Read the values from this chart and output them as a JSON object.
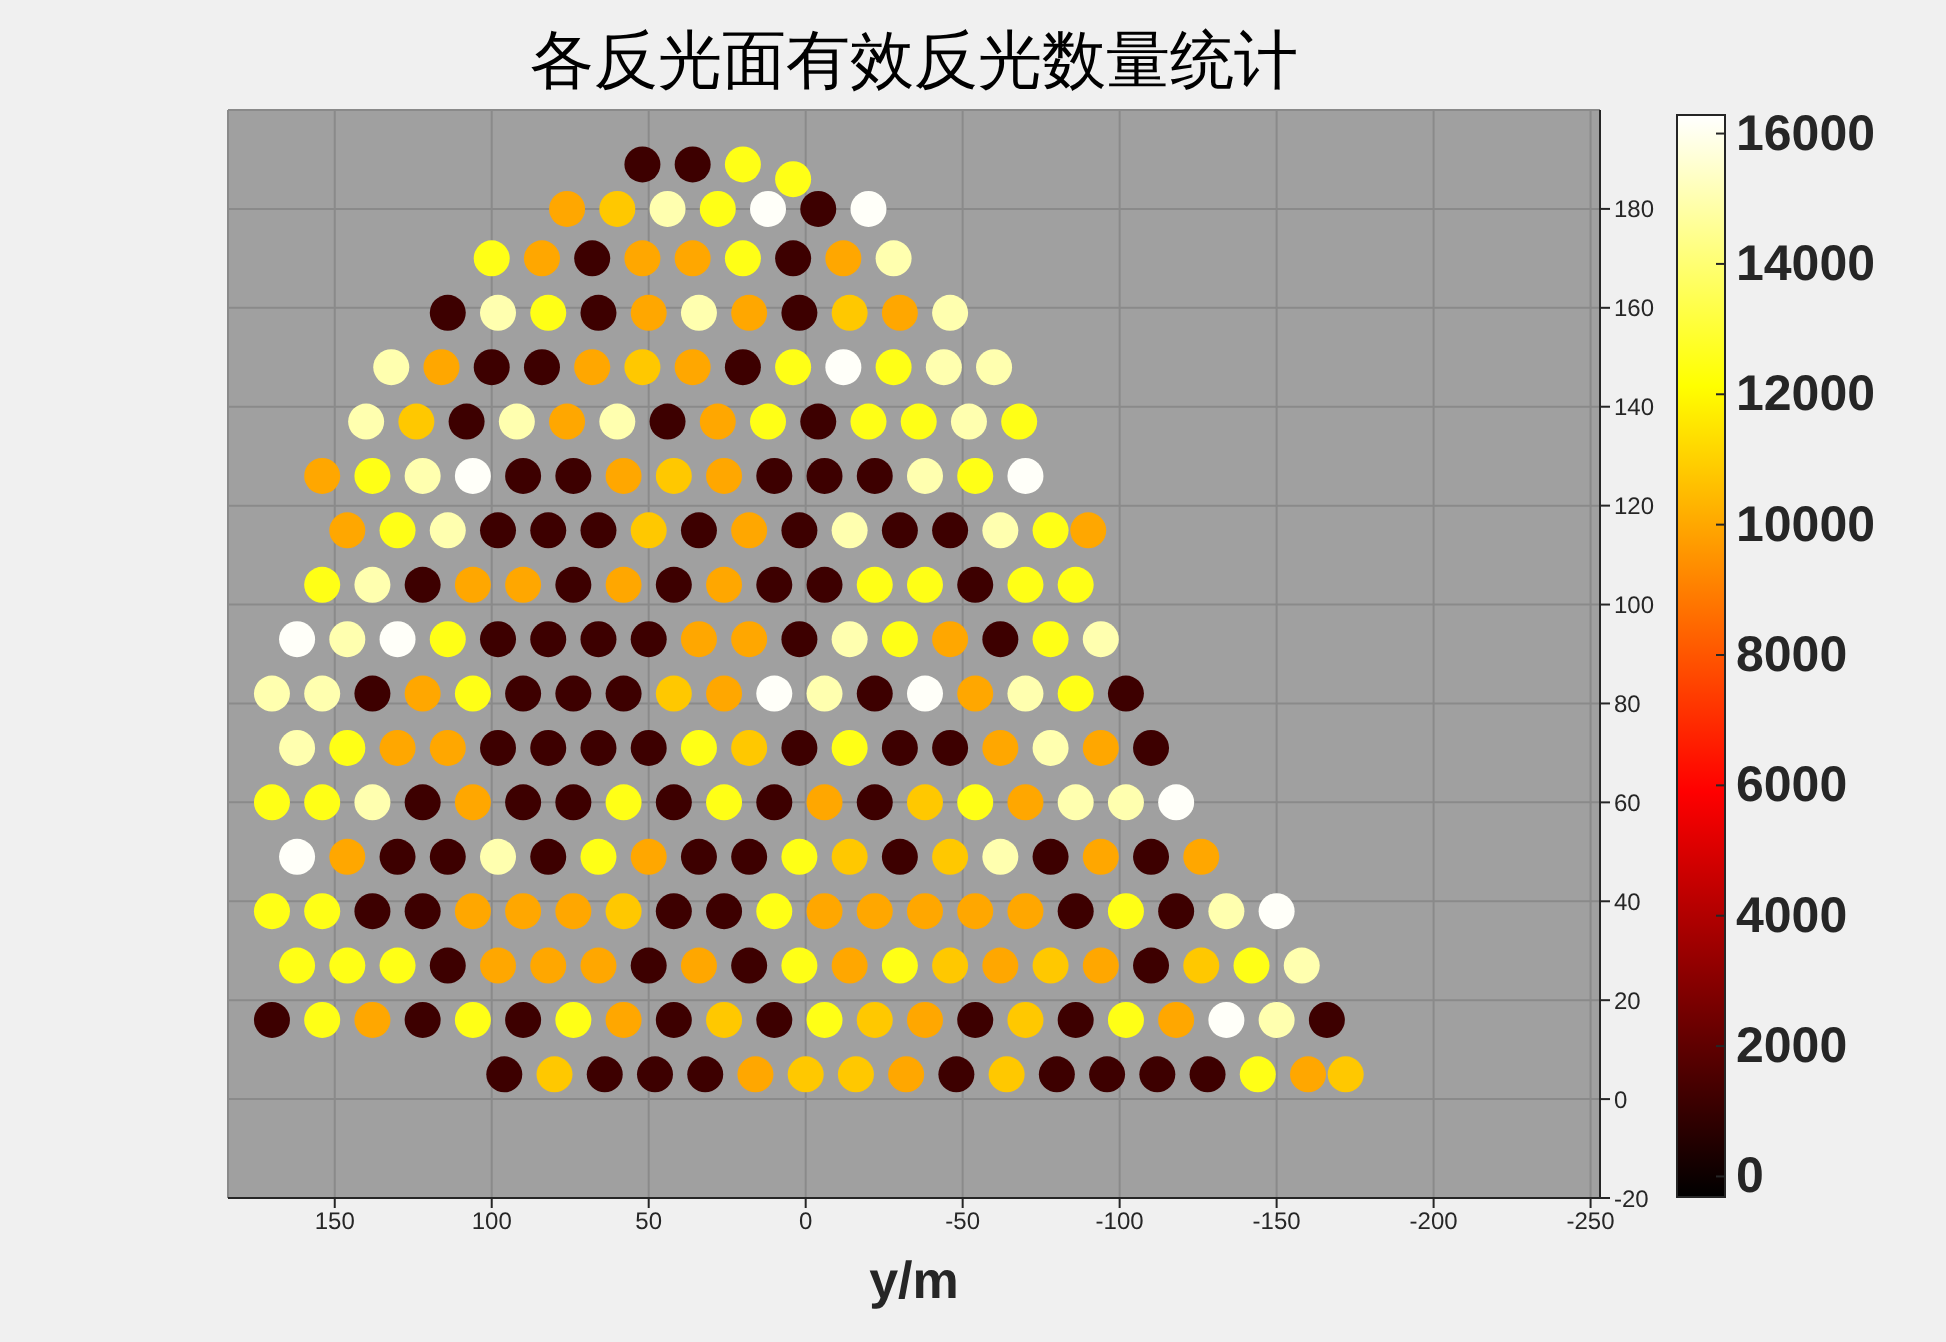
{
  "chart_data": {
    "type": "scatter",
    "title": "各反光面有效反光数量统计",
    "xlabel": "y/m",
    "xlim": [
      184,
      -253
    ],
    "ylim": [
      -20,
      200
    ],
    "xticks": [
      150,
      100,
      50,
      0,
      -50,
      -100,
      -150,
      -200,
      -250
    ],
    "yticks": [
      -20,
      0,
      20,
      40,
      60,
      80,
      100,
      120,
      140,
      160,
      180
    ],
    "grid": true,
    "marker": "circle",
    "clim": [
      -300,
      16300
    ],
    "cticks": [
      0,
      2000,
      4000,
      6000,
      8000,
      10000,
      12000,
      14000,
      16000
    ],
    "x": [
      96,
      80,
      64,
      48,
      32,
      16,
      0,
      -16,
      -32,
      -48,
      -64,
      -80,
      -96,
      -112,
      -128,
      -144,
      -160,
      -172,
      170,
      154,
      138,
      122,
      106,
      90,
      74,
      58,
      42,
      26,
      10,
      -6,
      -22,
      -38,
      -54,
      -70,
      -86,
      -102,
      -118,
      -134,
      -150,
      -166,
      162,
      146,
      130,
      114,
      98,
      82,
      66,
      50,
      34,
      18,
      2,
      -14,
      -30,
      -46,
      -62,
      -78,
      -94,
      -110,
      -126,
      -142,
      -158,
      170,
      154,
      138,
      122,
      106,
      90,
      74,
      58,
      42,
      26,
      10,
      -6,
      -22,
      -38,
      -54,
      -70,
      -86,
      -102,
      -118,
      -134,
      -150,
      162,
      146,
      130,
      114,
      98,
      82,
      66,
      50,
      34,
      18,
      2,
      -14,
      -30,
      -46,
      -62,
      -78,
      -94,
      -110,
      -126,
      170,
      154,
      138,
      122,
      106,
      90,
      74,
      58,
      42,
      26,
      10,
      -6,
      -22,
      -38,
      -54,
      -70,
      -86,
      -102,
      -118,
      162,
      146,
      130,
      114,
      98,
      82,
      66,
      50,
      34,
      18,
      2,
      -14,
      -30,
      -46,
      -62,
      -78,
      -94,
      -110,
      170,
      154,
      138,
      122,
      106,
      90,
      74,
      58,
      42,
      26,
      10,
      -6,
      -22,
      -38,
      -54,
      -70,
      -86,
      -102,
      162,
      146,
      130,
      114,
      98,
      82,
      66,
      50,
      34,
      18,
      2,
      -14,
      -30,
      -46,
      -62,
      -78,
      -94,
      154,
      138,
      122,
      106,
      90,
      74,
      58,
      42,
      26,
      10,
      -6,
      -22,
      -38,
      -54,
      -70,
      -86,
      146,
      130,
      114,
      98,
      82,
      66,
      50,
      34,
      18,
      2,
      -14,
      -30,
      -46,
      -62,
      -78,
      -90,
      154,
      138,
      122,
      106,
      90,
      74,
      58,
      42,
      26,
      10,
      -6,
      -22,
      -38,
      -54,
      -70,
      140,
      124,
      108,
      92,
      76,
      60,
      44,
      28,
      12,
      -4,
      -20,
      -36,
      -52,
      -68,
      132,
      116,
      100,
      84,
      68,
      52,
      36,
      20,
      4,
      -12,
      -28,
      -44,
      -60,
      114,
      98,
      82,
      66,
      50,
      34,
      18,
      2,
      -14,
      -30,
      -46,
      100,
      84,
      68,
      52,
      36,
      20,
      4,
      -12,
      -28,
      76,
      60,
      44,
      28,
      12,
      -4,
      -20,
      52,
      36,
      20,
      4
    ],
    "values": [
      5,
      5,
      5,
      5,
      5,
      5,
      5,
      5,
      5,
      5,
      5,
      5,
      5,
      5,
      5,
      5,
      5,
      5,
      16,
      16,
      16,
      16,
      16,
      16,
      16,
      16,
      16,
      16,
      16,
      16,
      16,
      16,
      16,
      16,
      16,
      16,
      16,
      16,
      16,
      16,
      27,
      27,
      27,
      27,
      27,
      27,
      27,
      27,
      27,
      27,
      27,
      27,
      27,
      27,
      27,
      27,
      27,
      27,
      27,
      27,
      27,
      38,
      38,
      38,
      38,
      38,
      38,
      38,
      38,
      38,
      38,
      38,
      38,
      38,
      38,
      38,
      38,
      38,
      38,
      38,
      38,
      38,
      49,
      49,
      49,
      49,
      49,
      49,
      49,
      49,
      49,
      49,
      49,
      49,
      49,
      49,
      49,
      49,
      49,
      49,
      49,
      60,
      60,
      60,
      60,
      60,
      60,
      60,
      60,
      60,
      60,
      60,
      60,
      60,
      60,
      60,
      60,
      60,
      60,
      60,
      71,
      71,
      71,
      71,
      71,
      71,
      71,
      71,
      71,
      71,
      71,
      71,
      71,
      71,
      71,
      71,
      71,
      71,
      82,
      82,
      82,
      82,
      82,
      82,
      82,
      82,
      82,
      82,
      82,
      82,
      82,
      82,
      82,
      82,
      82,
      82,
      93,
      93,
      93,
      93,
      93,
      93,
      93,
      93,
      93,
      93,
      93,
      93,
      93,
      93,
      93,
      93,
      93,
      104,
      104,
      104,
      104,
      104,
      104,
      104,
      104,
      104,
      104,
      104,
      104,
      104,
      104,
      104,
      104,
      115,
      115,
      115,
      115,
      115,
      115,
      115,
      115,
      115,
      115,
      115,
      115,
      115,
      115,
      115,
      115,
      126,
      126,
      126,
      126,
      126,
      126,
      126,
      126,
      126,
      126,
      126,
      126,
      126,
      126,
      126,
      137,
      137,
      137,
      137,
      137,
      137,
      137,
      137,
      137,
      137,
      137,
      137,
      137,
      137,
      148,
      148,
      148,
      148,
      148,
      148,
      148,
      148,
      148,
      148,
      148,
      148,
      148,
      159,
      159,
      159,
      159,
      159,
      159,
      159,
      159,
      159,
      159,
      159,
      170,
      170,
      170,
      170,
      170,
      170,
      170,
      170,
      170,
      180,
      180,
      180,
      180,
      180,
      180,
      180,
      189,
      189,
      189,
      186
    ],
    "cvalues": [
      1200,
      10800,
      1200,
      1200,
      1200,
      10000,
      10800,
      10800,
      10000,
      1200,
      10800,
      1200,
      1200,
      1200,
      1200,
      12500,
      10000,
      10800,
      1200,
      12500,
      10000,
      1200,
      12500,
      1200,
      12500,
      10000,
      1200,
      10800,
      1200,
      12500,
      10800,
      10000,
      1200,
      10800,
      1200,
      12500,
      10000,
      16200,
      15000,
      1200,
      12500,
      12500,
      12500,
      1200,
      10000,
      10000,
      10000,
      1200,
      10000,
      1200,
      12500,
      10000,
      12500,
      10800,
      10000,
      10800,
      10000,
      1200,
      10800,
      12500,
      15000,
      12500,
      12500,
      1200,
      1200,
      10000,
      10000,
      10000,
      10800,
      1200,
      1200,
      12500,
      10000,
      10000,
      10000,
      10000,
      10000,
      1200,
      12500,
      1200,
      15000,
      16200,
      16200,
      10000,
      1200,
      1200,
      15000,
      1200,
      12500,
      10000,
      1200,
      1200,
      12500,
      10800,
      1200,
      10800,
      15000,
      1200,
      10000,
      1200,
      10000,
      12500,
      12500,
      15000,
      1200,
      10000,
      1200,
      1200,
      12500,
      1200,
      12500,
      1200,
      10000,
      1200,
      10800,
      12500,
      10000,
      15000,
      15000,
      16200,
      15000,
      12500,
      10000,
      10000,
      1200,
      1200,
      1200,
      1200,
      12500,
      10800,
      1200,
      12500,
      1200,
      1200,
      10000,
      15000,
      10000,
      1200,
      15000,
      15000,
      1200,
      10000,
      12500,
      1200,
      1200,
      1200,
      10800,
      10000,
      16200,
      15000,
      1200,
      16200,
      10000,
      15000,
      12500,
      1200,
      16200,
      15000,
      16200,
      12500,
      1200,
      1200,
      1200,
      1200,
      10000,
      10000,
      1200,
      15000,
      12500,
      10000,
      1200,
      12500,
      15000,
      12500,
      15000,
      1200,
      10000,
      10000,
      1200,
      10000,
      1200,
      10000,
      1200,
      1200,
      12500,
      12500,
      1200,
      12500,
      12500,
      10000,
      12500,
      15000,
      1200,
      1200,
      1200,
      10800,
      1200,
      10000,
      1200,
      15000,
      1200,
      1200,
      15000,
      12500,
      10000,
      10000,
      12500,
      15000,
      16200,
      1200,
      1200,
      10000,
      10800,
      10000,
      1200,
      1200,
      1200,
      15000,
      12500,
      16200,
      15000,
      10800,
      1200,
      15000,
      10000,
      15000,
      1200,
      10000,
      12500,
      1200,
      12500,
      12500,
      15000,
      12500,
      15000,
      10000,
      1200,
      1200,
      10000,
      10800,
      10000,
      1200,
      12500,
      16200,
      12500,
      15000,
      15000,
      1200,
      15000,
      12500,
      1200,
      10000,
      15000,
      10000,
      1200,
      10800,
      10000,
      15000,
      12500,
      10000,
      1200,
      10000,
      10000,
      12500,
      1200,
      10000,
      15000,
      10000,
      10800,
      15000,
      12500,
      16200,
      1200,
      16200,
      1200,
      1200,
      12500,
      12500
    ]
  }
}
